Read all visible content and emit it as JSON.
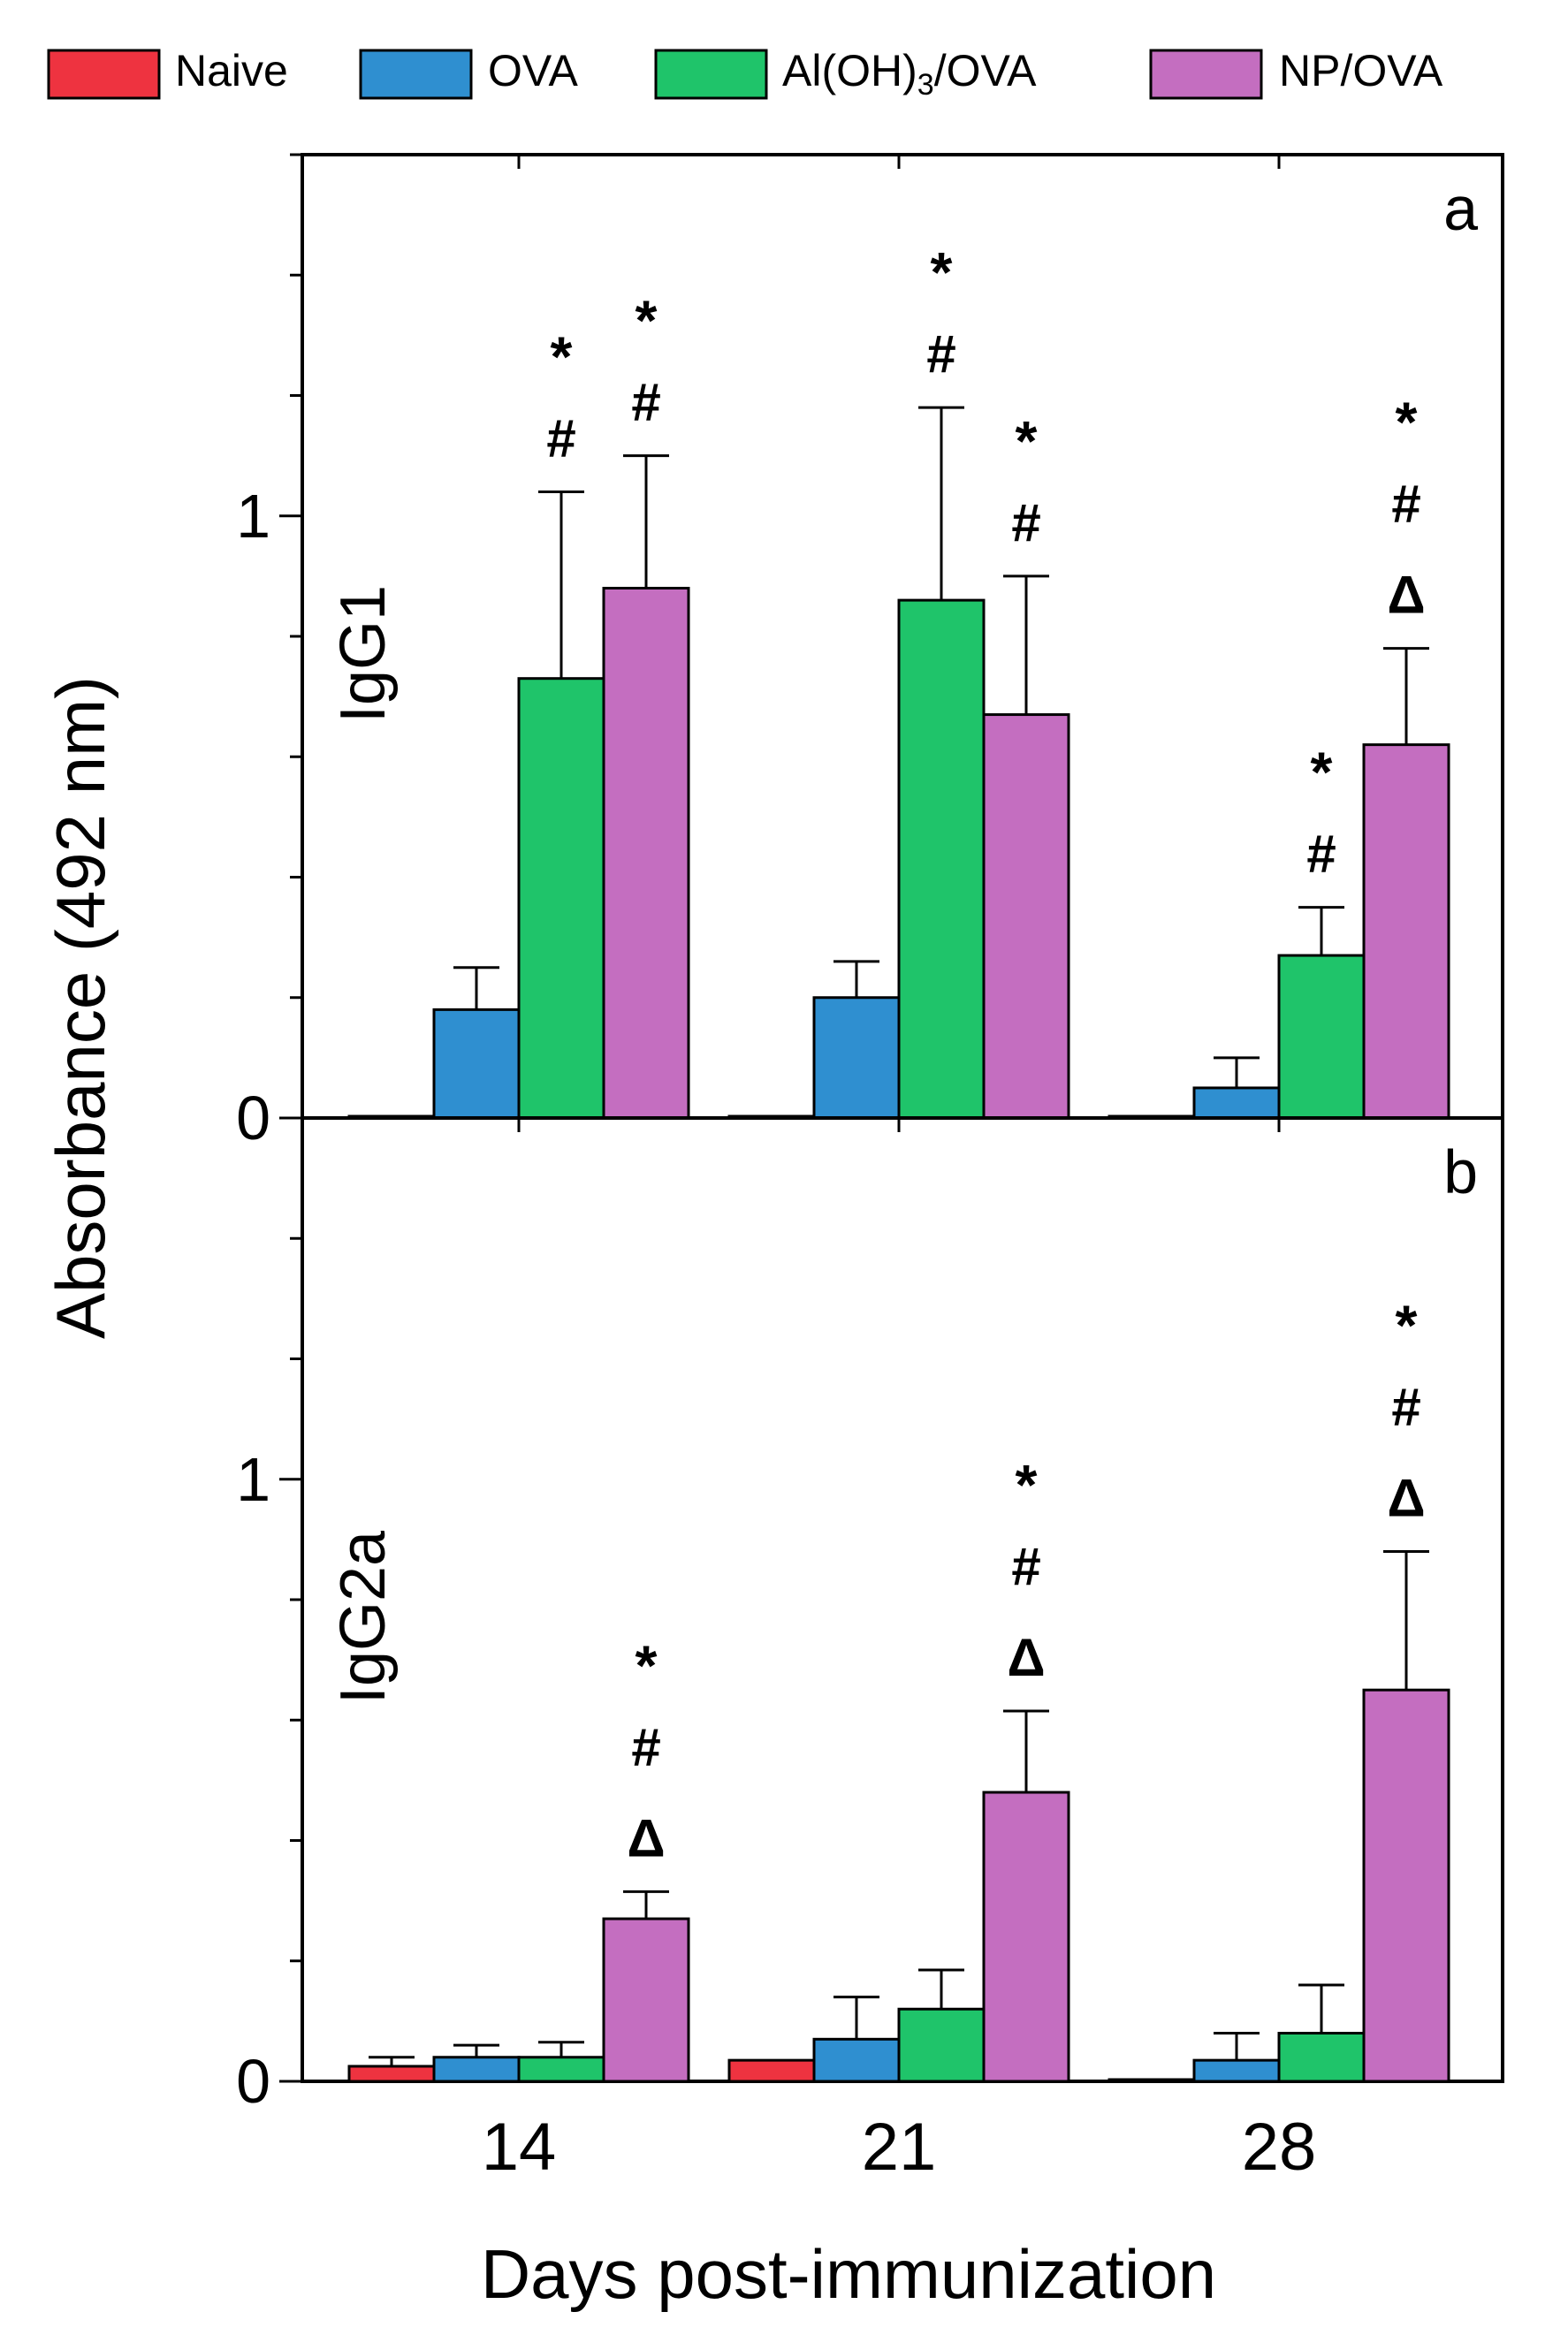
{
  "legend": {
    "items": [
      {
        "name": "Naive",
        "color": "#ee3340"
      },
      {
        "name": "OVA",
        "color": "#2f8fd0"
      },
      {
        "name": "Al(OH)3/OVA",
        "label_main": "Al(OH",
        "label_close": ")",
        "label_sub": "3",
        "label_tail": "/OVA",
        "color": "#1fc46a"
      },
      {
        "name": "NP/OVA",
        "color": "#c46ec0"
      }
    ]
  },
  "chart_data": [
    {
      "type": "bar",
      "panel_letter": "a",
      "panel_label": "IgG1",
      "categories": [
        "14",
        "21",
        "28"
      ],
      "ylim": [
        0,
        1.6
      ],
      "yticks": [
        0,
        1
      ],
      "series": [
        {
          "name": "Naive",
          "values": [
            0.0,
            0.0,
            0.0
          ],
          "errors": [
            0.0,
            0.0,
            0.0
          ]
        },
        {
          "name": "OVA",
          "values": [
            0.18,
            0.2,
            0.05
          ],
          "errors": [
            0.07,
            0.06,
            0.05
          ]
        },
        {
          "name": "Al(OH)3/OVA",
          "values": [
            0.73,
            0.86,
            0.27
          ],
          "errors": [
            0.31,
            0.32,
            0.08
          ]
        },
        {
          "name": "NP/OVA",
          "values": [
            0.88,
            0.67,
            0.62
          ],
          "errors": [
            0.22,
            0.23,
            0.16
          ]
        }
      ],
      "significance": [
        {
          "category": "14",
          "series": "Al(OH)3/OVA",
          "marks": [
            "*",
            "#"
          ]
        },
        {
          "category": "14",
          "series": "NP/OVA",
          "marks": [
            "*",
            "#"
          ]
        },
        {
          "category": "21",
          "series": "Al(OH)3/OVA",
          "marks": [
            "*",
            "#"
          ]
        },
        {
          "category": "21",
          "series": "NP/OVA",
          "marks": [
            "*",
            "#"
          ]
        },
        {
          "category": "28",
          "series": "Al(OH)3/OVA",
          "marks": [
            "*",
            "#"
          ]
        },
        {
          "category": "28",
          "series": "NP/OVA",
          "marks": [
            "*",
            "#",
            "Δ"
          ]
        }
      ]
    },
    {
      "type": "bar",
      "panel_letter": "b",
      "panel_label": "IgG2a",
      "categories": [
        "14",
        "21",
        "28"
      ],
      "ylim": [
        0,
        1.6
      ],
      "yticks": [
        0,
        1
      ],
      "series": [
        {
          "name": "Naive",
          "values": [
            0.025,
            0.035,
            0.0
          ],
          "errors": [
            0.015,
            0.0,
            0.0
          ]
        },
        {
          "name": "OVA",
          "values": [
            0.04,
            0.07,
            0.035
          ],
          "errors": [
            0.02,
            0.07,
            0.045
          ]
        },
        {
          "name": "Al(OH)3/OVA",
          "values": [
            0.04,
            0.12,
            0.08
          ],
          "errors": [
            0.025,
            0.065,
            0.08
          ]
        },
        {
          "name": "NP/OVA",
          "values": [
            0.27,
            0.48,
            0.65
          ],
          "errors": [
            0.045,
            0.135,
            0.23
          ]
        }
      ],
      "significance": [
        {
          "category": "14",
          "series": "NP/OVA",
          "marks": [
            "*",
            "#",
            "Δ"
          ]
        },
        {
          "category": "21",
          "series": "NP/OVA",
          "marks": [
            "*",
            "#",
            "Δ"
          ]
        },
        {
          "category": "28",
          "series": "NP/OVA",
          "marks": [
            "*",
            "#",
            "Δ"
          ]
        }
      ]
    }
  ],
  "ylabel": "Absorbance (492 nm)",
  "xlabel": "Days post-immunization"
}
